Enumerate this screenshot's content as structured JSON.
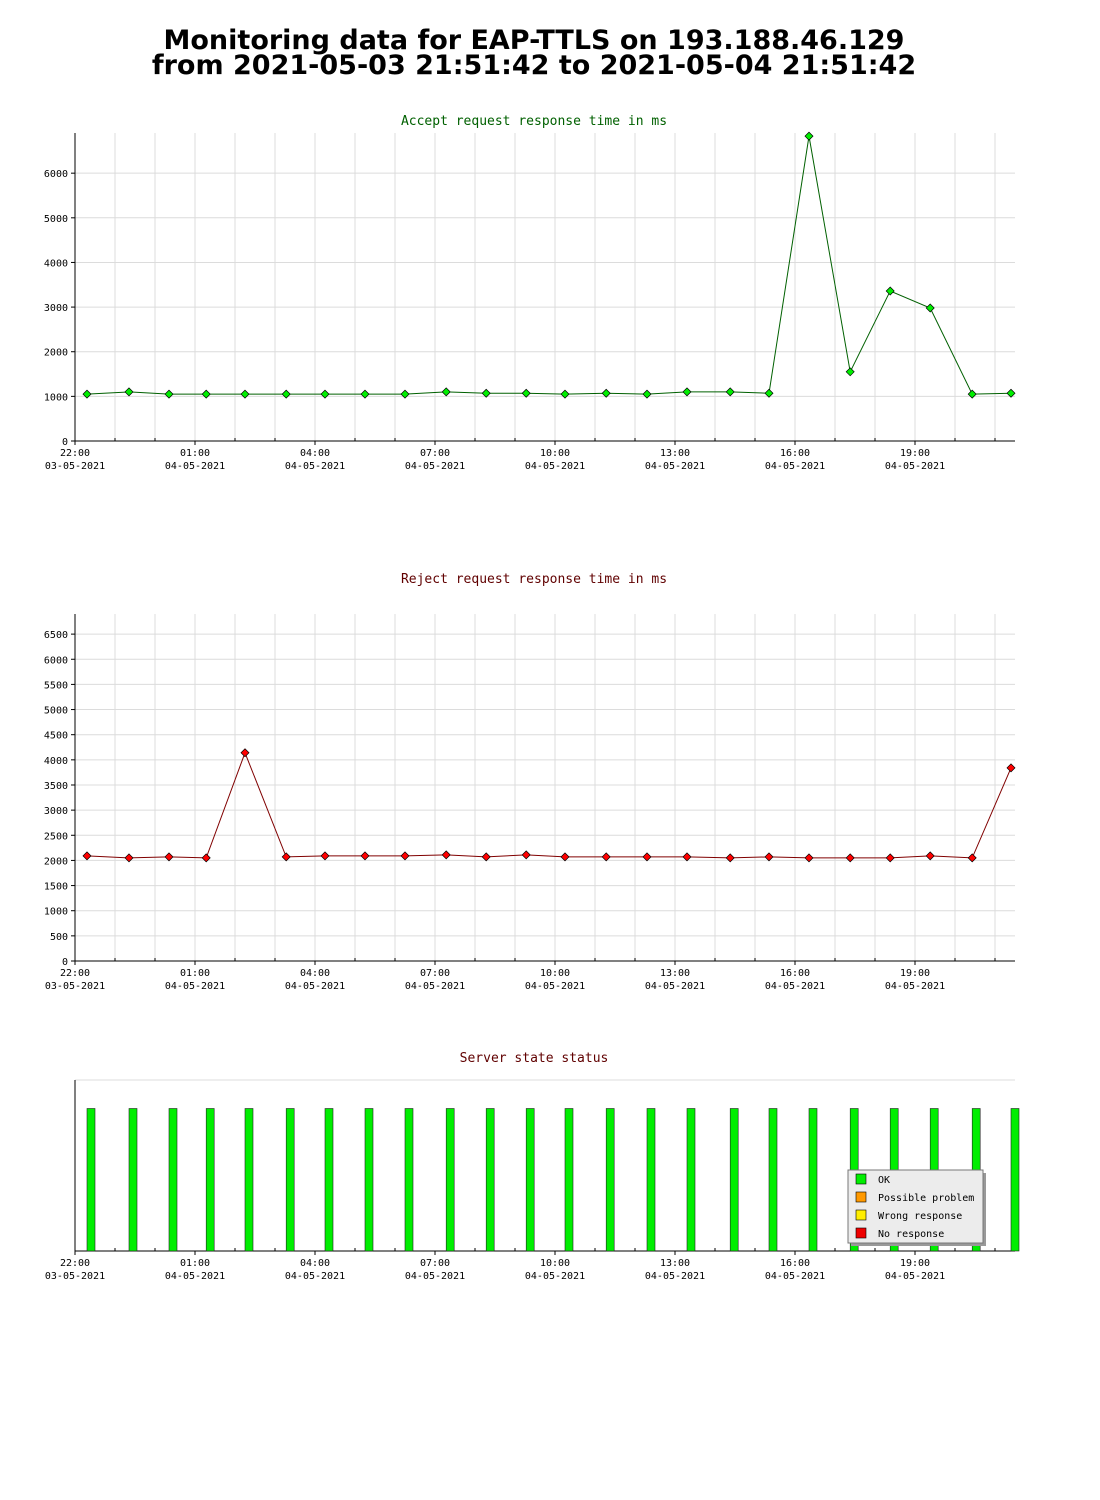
{
  "header": {
    "title": "Monitoring data for EAP-TTLS on 193.188.46.129",
    "subtitle": "from 2021-05-03 21:51:42 to 2021-05-04 21:51:42"
  },
  "chart_data": [
    {
      "type": "line",
      "title": "Accept request response time in ms",
      "title_color": "#006000",
      "x": [
        0.3,
        1.35,
        2.35,
        3.28,
        4.25,
        5.28,
        6.25,
        7.25,
        8.25,
        9.28,
        10.28,
        11.28,
        12.25,
        13.28,
        14.3,
        15.3,
        16.38,
        17.35,
        18.35,
        19.38,
        20.38,
        21.38,
        22.43,
        23.4
      ],
      "values": [
        1050,
        1100,
        1050,
        1050,
        1050,
        1050,
        1050,
        1050,
        1050,
        1100,
        1070,
        1070,
        1050,
        1070,
        1050,
        1100,
        1100,
        1070,
        6830,
        1550,
        3360,
        2980,
        1050,
        1070
      ],
      "color": "#006000",
      "marker_color": "#00ee00",
      "xlim": [
        0,
        23.5
      ],
      "xticks": [
        {
          "value": 0,
          "label": "22:00\n03-05-2021"
        },
        {
          "value": 3,
          "label": "01:00\n04-05-2021"
        },
        {
          "value": 6,
          "label": "04:00\n04-05-2021"
        },
        {
          "value": 9,
          "label": "07:00\n04-05-2021"
        },
        {
          "value": 12,
          "label": "10:00\n04-05-2021"
        },
        {
          "value": 15,
          "label": "13:00\n04-05-2021"
        },
        {
          "value": 18,
          "label": "16:00\n04-05-2021"
        },
        {
          "value": 21,
          "label": "19:00\n04-05-2021"
        }
      ],
      "minor_xticks": [
        1,
        2,
        4,
        5,
        7,
        8,
        10,
        11,
        13,
        14,
        16,
        17,
        19,
        20,
        22,
        23
      ],
      "ylim": [
        0,
        6900
      ],
      "yticks": [
        0,
        1000,
        2000,
        3000,
        4000,
        5000,
        6000
      ],
      "grid": true
    },
    {
      "type": "line",
      "title": "Reject request response time in ms",
      "title_color": "#600000",
      "x": [
        0.3,
        1.35,
        2.35,
        3.28,
        4.25,
        5.28,
        6.25,
        7.25,
        8.25,
        9.28,
        10.28,
        11.28,
        12.25,
        13.28,
        14.3,
        15.3,
        16.38,
        17.35,
        18.35,
        19.38,
        20.38,
        21.38,
        22.43,
        23.4
      ],
      "values": [
        2090,
        2050,
        2070,
        2050,
        4140,
        2070,
        2090,
        2090,
        2090,
        2110,
        2070,
        2110,
        2070,
        2070,
        2070,
        2070,
        2050,
        2070,
        2050,
        2050,
        2050,
        2090,
        2050,
        3840
      ],
      "color": "#800000",
      "marker_color": "#ff0000",
      "xlim": [
        0,
        23.5
      ],
      "xticks": [
        {
          "value": 0,
          "label": "22:00\n03-05-2021"
        },
        {
          "value": 3,
          "label": "01:00\n04-05-2021"
        },
        {
          "value": 6,
          "label": "04:00\n04-05-2021"
        },
        {
          "value": 9,
          "label": "07:00\n04-05-2021"
        },
        {
          "value": 12,
          "label": "10:00\n04-05-2021"
        },
        {
          "value": 15,
          "label": "13:00\n04-05-2021"
        },
        {
          "value": 18,
          "label": "16:00\n04-05-2021"
        },
        {
          "value": 21,
          "label": "19:00\n04-05-2021"
        }
      ],
      "minor_xticks": [
        1,
        2,
        4,
        5,
        7,
        8,
        10,
        11,
        13,
        14,
        16,
        17,
        19,
        20,
        22,
        23
      ],
      "ylim": [
        0,
        6900
      ],
      "yticks": [
        0,
        500,
        1000,
        1500,
        2000,
        2500,
        3000,
        3500,
        4000,
        4500,
        5000,
        5500,
        6000,
        6500
      ],
      "grid": true
    },
    {
      "type": "bar",
      "title": "Server state status",
      "title_color": "#600000",
      "x": [
        0.4,
        1.45,
        2.45,
        3.38,
        4.35,
        5.38,
        6.35,
        7.35,
        8.35,
        9.38,
        10.38,
        11.38,
        12.35,
        13.38,
        14.4,
        15.4,
        16.48,
        17.45,
        18.45,
        19.48,
        20.48,
        21.48,
        22.53,
        23.5
      ],
      "values": [
        1,
        1,
        1,
        1,
        1,
        1,
        1,
        1,
        1,
        1,
        1,
        1,
        1,
        1,
        1,
        1,
        1,
        1,
        1,
        1,
        1,
        1,
        1,
        1
      ],
      "color": "#00ee00",
      "xlim": [
        0,
        23.5
      ],
      "xticks": [
        {
          "value": 0,
          "label": "22:00\n03-05-2021"
        },
        {
          "value": 3,
          "label": "01:00\n04-05-2021"
        },
        {
          "value": 6,
          "label": "04:00\n04-05-2021"
        },
        {
          "value": 9,
          "label": "07:00\n04-05-2021"
        },
        {
          "value": 12,
          "label": "10:00\n04-05-2021"
        },
        {
          "value": 15,
          "label": "13:00\n04-05-2021"
        },
        {
          "value": 18,
          "label": "16:00\n04-05-2021"
        },
        {
          "value": 21,
          "label": "19:00\n04-05-2021"
        }
      ],
      "minor_xticks": [
        1,
        2,
        4,
        5,
        7,
        8,
        10,
        11,
        13,
        14,
        16,
        17,
        19,
        20,
        22,
        23
      ],
      "ylim": [
        0,
        1.2
      ],
      "grid": false,
      "legend": [
        {
          "name": "OK",
          "color": "#00ee00"
        },
        {
          "name": "Possible problem",
          "color": "#ff9900"
        },
        {
          "name": "Wrong response",
          "color": "#ffee00"
        },
        {
          "name": "No response",
          "color": "#ee0000"
        }
      ],
      "legend_position": "lower right"
    }
  ]
}
